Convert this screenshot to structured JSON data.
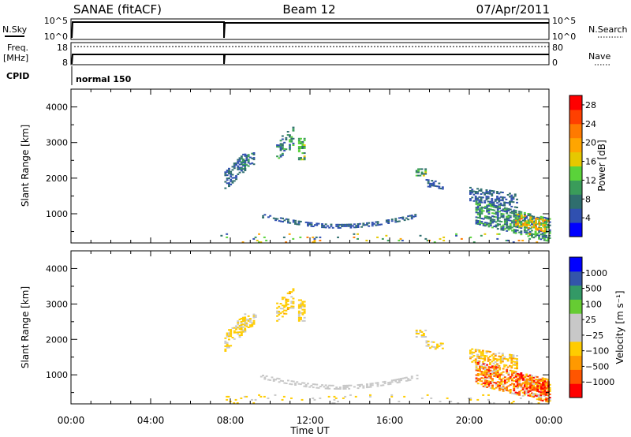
{
  "header": {
    "station": "SANAE (fitACF)",
    "beam": "Beam 12",
    "date": "07/Apr/2011"
  },
  "status": {
    "nsky_label": "N.Sky",
    "nsearch_label": "N.Search",
    "freq_label": "Freq.",
    "freq_unit": "[MHz]",
    "nave_label": "Nave",
    "cpid_label": "CPID",
    "cpid_value": "normal 150",
    "nsky_ticks": [
      "10^5",
      "10^0"
    ],
    "nsearch_ticks": [
      "10^5",
      "10^0"
    ],
    "freq_ticks": [
      "18",
      "8"
    ],
    "nave_ticks": [
      "80",
      "0"
    ]
  },
  "x_ticks": [
    "00:00",
    "04:00",
    "08:00",
    "12:00",
    "16:00",
    "20:00",
    "00:00"
  ],
  "xlabel": "Time UT",
  "colors": {
    "power": [
      "#0000ff",
      "#3050b0",
      "#2f6e6e",
      "#3a9c5a",
      "#5ad33a",
      "#e6c800",
      "#ffa500",
      "#ff7a00",
      "#ff4000",
      "#ff0000"
    ],
    "velocity": [
      "#ff0000",
      "#ff5500",
      "#ff9900",
      "#ffcc00",
      "#c8c8c8",
      "#c8c8c8",
      "#66cc33",
      "#339966",
      "#3355aa",
      "#0000ff"
    ]
  },
  "chart_data": [
    {
      "type": "heatmap",
      "name": "power",
      "ylabel": "Slant Range [km]",
      "ylim": [
        180,
        4500
      ],
      "xlim_hours": [
        0,
        24
      ],
      "y_ticks": [
        1000,
        2000,
        3000,
        4000
      ],
      "colorbar_label": "Power [dB]",
      "colorbar_ticks": [
        "4",
        "8",
        "12",
        "16",
        "20",
        "24",
        "28"
      ],
      "colorbar_range": [
        0,
        30
      ],
      "regions": [
        {
          "t0": 7.7,
          "t1": 8.7,
          "r0": 1650,
          "r1": 2150,
          "slope": 550,
          "vmin": 3,
          "vmax": 9,
          "density": 0.55
        },
        {
          "t0": 8.5,
          "t1": 9.3,
          "r0": 2250,
          "r1": 2600,
          "slope": 150,
          "vmin": 4,
          "vmax": 12,
          "density": 0.55
        },
        {
          "t0": 10.3,
          "t1": 11.2,
          "r0": 2500,
          "r1": 3050,
          "slope": 400,
          "vmin": 4,
          "vmax": 13,
          "density": 0.35
        },
        {
          "t0": 11.4,
          "t1": 11.7,
          "r0": 2500,
          "r1": 3100,
          "slope": 0,
          "vmin": 6,
          "vmax": 16,
          "density": 0.55
        },
        {
          "t0": 9.5,
          "t1": 17.4,
          "r0": 880,
          "r1": 1000,
          "slope": 0,
          "vmin": 3,
          "vmax": 8,
          "density": 0.5,
          "curve": "bowl",
          "depth": 300
        },
        {
          "t0": 17.3,
          "t1": 17.8,
          "r0": 2050,
          "r1": 2250,
          "slope": 0,
          "vmin": 6,
          "vmax": 16,
          "density": 0.6
        },
        {
          "t0": 17.8,
          "t1": 18.7,
          "r0": 1750,
          "r1": 1950,
          "slope": -80,
          "vmin": 3,
          "vmax": 8,
          "density": 0.45
        },
        {
          "t0": 20.0,
          "t1": 22.4,
          "r0": 1350,
          "r1": 1750,
          "slope": -200,
          "vmin": 3,
          "vmax": 9,
          "density": 0.5
        },
        {
          "t0": 20.3,
          "t1": 24.0,
          "r0": 700,
          "r1": 1350,
          "slope": -500,
          "vmin": 3,
          "vmax": 14,
          "density": 0.6
        },
        {
          "t0": 22.3,
          "t1": 24.0,
          "r0": 650,
          "r1": 1000,
          "slope": -200,
          "vmin": 10,
          "vmax": 24,
          "density": 0.55
        },
        {
          "t0": 7.5,
          "t1": 24.0,
          "r0": 180,
          "r1": 430,
          "slope": 0,
          "vmin": 3,
          "vmax": 24,
          "density": 0.06
        }
      ]
    },
    {
      "type": "heatmap",
      "name": "velocity",
      "ylabel": "Slant Range [km]",
      "ylim": [
        180,
        4500
      ],
      "xlim_hours": [
        0,
        24
      ],
      "y_ticks": [
        1000,
        2000,
        3000,
        4000
      ],
      "colorbar_label": "Velocity [m s⁻¹]",
      "colorbar_ticks": [
        "1000",
        "500",
        "100",
        "25",
        "−25",
        "−100",
        "−500",
        "−1000"
      ],
      "colorbar_range": [
        -1200,
        1200
      ],
      "regions": [
        {
          "t0": 7.7,
          "t1": 8.7,
          "r0": 1650,
          "r1": 2150,
          "slope": 550,
          "vmin": -420,
          "vmax": -140,
          "density": 0.5
        },
        {
          "t0": 8.5,
          "t1": 9.3,
          "r0": 2250,
          "r1": 2600,
          "slope": 150,
          "vmin": -500,
          "vmax": -150,
          "density": 0.5
        },
        {
          "t0": 10.3,
          "t1": 11.2,
          "r0": 2500,
          "r1": 3050,
          "slope": 400,
          "vmin": -500,
          "vmax": -150,
          "density": 0.35
        },
        {
          "t0": 11.4,
          "t1": 11.7,
          "r0": 2500,
          "r1": 3100,
          "slope": 0,
          "vmin": -500,
          "vmax": -150,
          "density": 0.55
        },
        {
          "t0": 9.5,
          "t1": 17.4,
          "r0": 880,
          "r1": 1000,
          "slope": 0,
          "vmin": -20,
          "vmax": 20,
          "density": 0.5,
          "curve": "bowl",
          "depth": 300
        },
        {
          "t0": 17.3,
          "t1": 17.8,
          "r0": 2050,
          "r1": 2250,
          "slope": 0,
          "vmin": -420,
          "vmax": -150,
          "density": 0.6
        },
        {
          "t0": 17.8,
          "t1": 18.7,
          "r0": 1750,
          "r1": 1950,
          "slope": -80,
          "vmin": -350,
          "vmax": -120,
          "density": 0.45
        },
        {
          "t0": 20.0,
          "t1": 22.4,
          "r0": 1350,
          "r1": 1750,
          "slope": -200,
          "vmin": -600,
          "vmax": -150,
          "density": 0.5
        },
        {
          "t0": 20.3,
          "t1": 24.0,
          "r0": 700,
          "r1": 1350,
          "slope": -500,
          "vmin": -1100,
          "vmax": -150,
          "density": 0.6
        },
        {
          "t0": 22.3,
          "t1": 24.0,
          "r0": 650,
          "r1": 1000,
          "slope": -200,
          "vmin": -1200,
          "vmax": -400,
          "density": 0.55
        },
        {
          "t0": 7.5,
          "t1": 24.0,
          "r0": 180,
          "r1": 430,
          "slope": 0,
          "vmin": -400,
          "vmax": -100,
          "density": 0.06
        }
      ]
    }
  ]
}
